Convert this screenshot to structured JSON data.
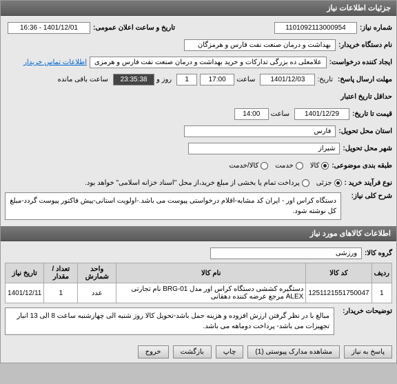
{
  "sections": {
    "info": "جزئیات اطلاعات نیاز",
    "goods": "اطلاعات کالاهای مورد نیاز"
  },
  "labels": {
    "need_no": "شماره نیاز:",
    "announce": "تاریخ و ساعت اعلان عمومی:",
    "buyer": "نام دستگاه خریدار:",
    "requester": "ایجاد کننده درخواست:",
    "deadline": "مهلت ارسال پاسخ:",
    "from_date": "تاریخ:",
    "valid_until": "حداقل تاریخ اعتبار",
    "price_until": "قیمت تا تاریخ:",
    "location": "استان محل تحویل:",
    "city": "شهر محل تحویل:",
    "category": "طبقه بندی موضوعی:",
    "purchase_type": "نوع فرآیند خرید :",
    "desc": "شرح کلی نیاز:",
    "goods_group": "گروه کالا:",
    "buyer_notes": "توضیحات خریدار:",
    "time": "ساعت",
    "and": "روز و",
    "remaining": "ساعت باقی مانده",
    "contact": "اطلاعات تماس خریدار"
  },
  "values": {
    "need_no": "1101092113000954",
    "announce": "1401/12/01 - 16:36",
    "buyer": "بهداشت و درمان صنعت نفت فارس و هرمزگان",
    "requester": "علامعلی ده بزرگی تدارکات و خرید بهداشت و درمان صنعت نفت فارس و هرمزی",
    "deadline_date": "1401/12/03",
    "deadline_time": "17:00",
    "days": "1",
    "countdown": "23:35:38",
    "valid_date": "1401/12/29",
    "valid_time": "14:00",
    "province": "فارس",
    "city": "شیراز",
    "goods_group": "ورزشی",
    "description": "دستگاه کراس اور - ایران کد مشابه-اقلام درخواستی پیوست می باشد.-اولویت استانی-پیش فاکتور پیوست گردد-مبلغ کل نوشته شود.",
    "buyer_notes": "مبالغ با در نظر گرفتن ارزش افزوده و هزینه حمل باشد-تحویل کالا روز شنبه الی چهارشنبه ساعت 8 الی 13 انبار تجهیزات می باشد- پرداخت دوماهه می باشد."
  },
  "radios": {
    "cat": [
      {
        "label": "کالا",
        "checked": true
      },
      {
        "label": "خدمت",
        "checked": false
      },
      {
        "label": "کالا/خدمت",
        "checked": false
      }
    ],
    "purchase": [
      {
        "label": "جزئی",
        "checked": true
      },
      {
        "label": "پرداخت تمام یا بخشی از مبلغ خرید،از محل \"اسناد خزانه اسلامی\" خواهد بود.",
        "checked": false
      }
    ]
  },
  "table": {
    "headers": [
      "ردیف",
      "کد کالا",
      "نام کالا",
      "واحد شمارش",
      "تعداد / مقدار",
      "تاریخ نیاز"
    ],
    "rows": [
      {
        "idx": "1",
        "code": "1251121551750047",
        "name": "دستگیره کششی دستگاه کراس اور مدل BRG-01 نام تجارتی ALEX مرجع عرضه کننده دهقانی",
        "unit": "عدد",
        "qty": "1",
        "date": "1401/12/11"
      }
    ]
  },
  "buttons": {
    "reply": "پاسخ به نیاز",
    "docs": "مشاهده مدارک پیوستی (1)",
    "print": "چاپ",
    "back": "بازگشت",
    "exit": "خروج"
  }
}
